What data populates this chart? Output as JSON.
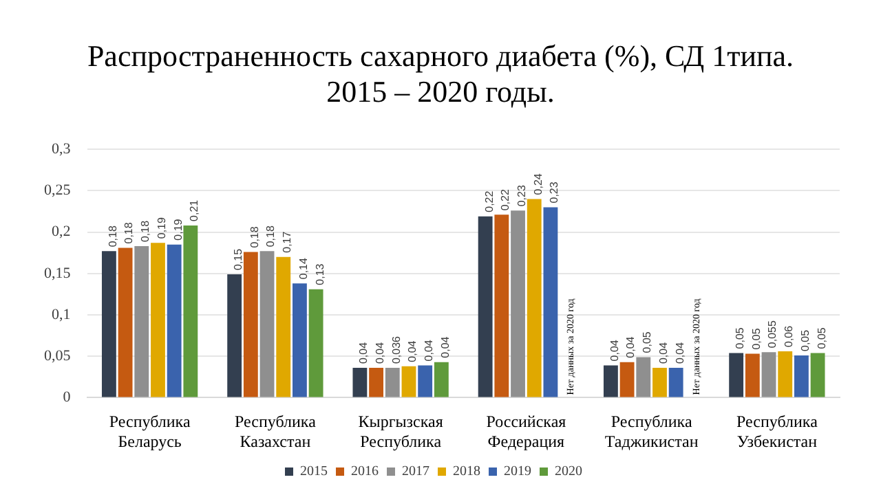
{
  "chart_data": {
    "type": "bar",
    "title": "Распространенность сахарного диабета (%), СД 1типа. 2015 – 2020 годы.",
    "categories": [
      "Республика Беларусь",
      "Республика Казахстан",
      "Кыргызская Республика",
      "Российская Федерация",
      "Республика Таджикистан",
      "Республика Узбекистан"
    ],
    "series": [
      {
        "name": "2015",
        "color": "#333f50",
        "values": [
          0.177,
          0.149,
          0.036,
          0.219,
          0.039,
          0.054
        ],
        "value_labels": [
          "0,18",
          "0,15",
          "0,04",
          "0,22",
          "0,04",
          "0,05"
        ]
      },
      {
        "name": "2016",
        "color": "#c55a11",
        "values": [
          0.181,
          0.176,
          0.036,
          0.221,
          0.043,
          0.053
        ],
        "value_labels": [
          "0,18",
          "0,18",
          "0,04",
          "0,22",
          "0,04",
          "0,05"
        ]
      },
      {
        "name": "2017",
        "color": "#8f8f8f",
        "values": [
          0.183,
          0.177,
          0.036,
          0.226,
          0.049,
          0.055
        ],
        "value_labels": [
          "0,18",
          "0,18",
          "0,036",
          "0,23",
          "0,05",
          "0,055"
        ]
      },
      {
        "name": "2018",
        "color": "#e0a800",
        "values": [
          0.187,
          0.17,
          0.038,
          0.24,
          0.036,
          0.056
        ],
        "value_labels": [
          "0,19",
          "0,17",
          "0,04",
          "0,24",
          "0,04",
          "0,06"
        ]
      },
      {
        "name": "2019",
        "color": "#3a63ad",
        "values": [
          0.185,
          0.138,
          0.039,
          0.23,
          0.036,
          0.051
        ],
        "value_labels": [
          "0,19",
          "0,14",
          "0,04",
          "0,23",
          "0,04",
          "0,05"
        ]
      },
      {
        "name": "2020",
        "color": "#5f9a3b",
        "values": [
          0.208,
          0.131,
          0.043,
          null,
          null,
          0.054
        ],
        "value_labels": [
          "0,21",
          "0,13",
          "0,04",
          null,
          null,
          "0,05"
        ]
      }
    ],
    "ylim": [
      0,
      0.3
    ],
    "yticks": [
      0,
      {
        "value": 0.05,
        "label": "0,05"
      },
      {
        "value": 0.1,
        "label": "0,1"
      },
      {
        "value": 0.15,
        "label": "0,15"
      },
      {
        "value": 0.2,
        "label": "0,2"
      },
      {
        "value": 0.25,
        "label": "0,25"
      },
      {
        "value": 0.3,
        "label": "0,3"
      }
    ],
    "grid": "y",
    "legend": "bottom",
    "annotations": [
      "Нет данных за 2020 год",
      "Нет данных за 2020 год"
    ]
  }
}
